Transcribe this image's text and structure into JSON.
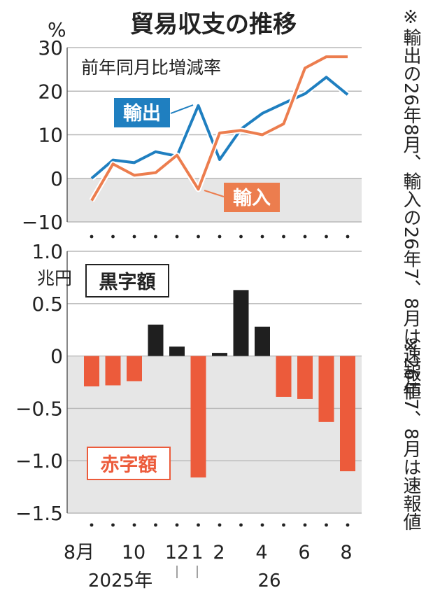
{
  "header": {
    "title": "貿易収支の推移",
    "top_unit": "%",
    "bottom_unit": "兆円"
  },
  "notes": {
    "top": "※輸出の26年8月、輸入の26年7、8月は速報値",
    "bottom": "※26年7、8月は速報値"
  },
  "x_axis": {
    "tick_labels": [
      "8月",
      "10",
      "12",
      "1",
      "2",
      "4",
      "6",
      "8"
    ],
    "year_labels": [
      "2025年",
      "26"
    ]
  },
  "colors": {
    "export": "#1f7fc0",
    "import": "#ec7d4e",
    "surplus": "#1f1f1f",
    "deficit": "#ec5b3b",
    "negative_area": "#e6e6e6",
    "grid": "#b8b8b8"
  },
  "chart_data": [
    {
      "type": "line",
      "title": "前年同月比増減率",
      "ylabel": "%",
      "ylim": [
        -10,
        30
      ],
      "yticks": [
        30,
        20,
        10,
        0,
        -10
      ],
      "x": [
        "2025-08",
        "2025-09",
        "2025-10",
        "2025-11",
        "2025-12",
        "2026-01",
        "2026-02",
        "2026-03",
        "2026-04",
        "2026-05",
        "2026-06",
        "2026-07",
        "2026-08"
      ],
      "series": [
        {
          "name": "輸出",
          "values": [
            0.0,
            4.2,
            3.6,
            6.1,
            5.1,
            16.7,
            4.3,
            11.3,
            14.9,
            17.2,
            19.4,
            23.2,
            19.2
          ]
        },
        {
          "name": "輸入",
          "values": [
            -5.1,
            3.3,
            0.7,
            1.3,
            5.3,
            -2.5,
            10.4,
            11.0,
            10.0,
            12.5,
            25.3,
            27.9,
            27.9
          ]
        }
      ]
    },
    {
      "type": "bar",
      "ylabel": "兆円",
      "ylim": [
        -1.5,
        1.0
      ],
      "yticks": [
        "1.0",
        "0.5",
        "0",
        "-0.5",
        "-1.0",
        "-1.5"
      ],
      "categories": [
        "2025-08",
        "2025-09",
        "2025-10",
        "2025-11",
        "2025-12",
        "2026-01",
        "2026-02",
        "2026-03",
        "2026-04",
        "2026-05",
        "2026-06",
        "2026-07",
        "2026-08"
      ],
      "values": [
        -0.29,
        -0.28,
        -0.24,
        0.3,
        0.09,
        -1.16,
        0.03,
        0.63,
        0.28,
        -0.39,
        -0.41,
        -0.63,
        -1.1
      ],
      "legend": {
        "surplus": "黒字額",
        "deficit": "赤字額"
      }
    }
  ]
}
